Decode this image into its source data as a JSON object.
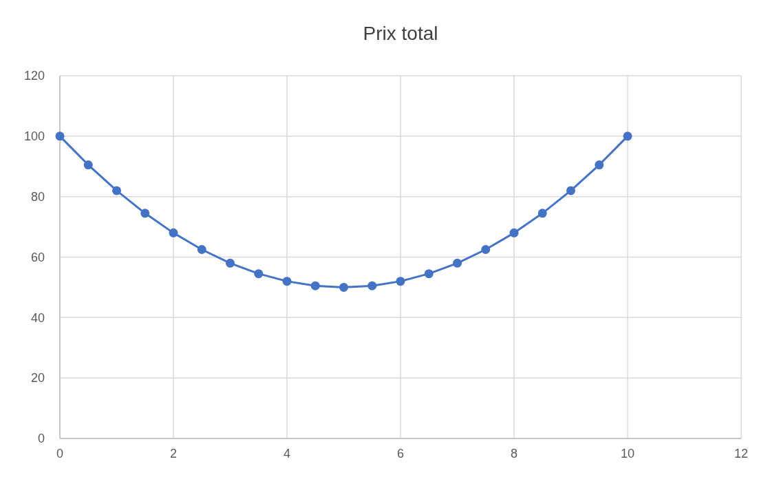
{
  "chart_data": {
    "type": "line",
    "title": "Prix total",
    "x": [
      0,
      0.5,
      1,
      1.5,
      2,
      2.5,
      3,
      3.5,
      4,
      4.5,
      5,
      5.5,
      6,
      6.5,
      7,
      7.5,
      8,
      8.5,
      9,
      9.5,
      10
    ],
    "series": [
      {
        "color": "#4472c4",
        "values": [
          100,
          90.5,
          82,
          74.5,
          68,
          62.5,
          58,
          54.5,
          52,
          50.5,
          50,
          50.5,
          52,
          54.5,
          58,
          62.5,
          68,
          74.5,
          82,
          90.5,
          100
        ]
      }
    ],
    "xlim": [
      0,
      12
    ],
    "xticks": [
      0,
      2,
      4,
      6,
      8,
      10,
      12
    ],
    "ylim": [
      0,
      120
    ],
    "yticks": [
      0,
      20,
      40,
      60,
      80,
      100,
      120
    ],
    "grid": true,
    "marker": "circle",
    "line_style": "solid"
  }
}
